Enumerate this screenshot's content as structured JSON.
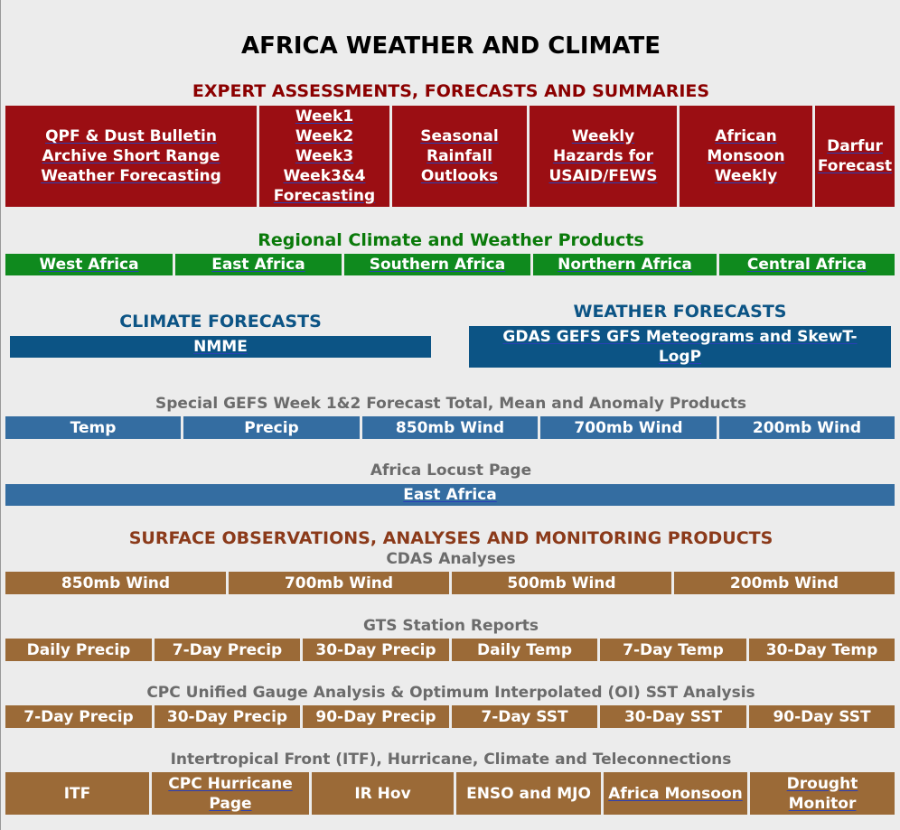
{
  "page_title": "AFRICA WEATHER AND CLIMATE",
  "colors": {
    "expert_header": "#8b0000",
    "expert_bg": "#9b0e13",
    "regional_header": "#0a7a0a",
    "regional_bg": "#0f8a1e",
    "forecast_header": "#0c5485",
    "forecast_bg": "#0c5485",
    "gefs_bg": "#346da1",
    "surface_header": "#8b3a1a",
    "surface_bg": "#9b6a37"
  },
  "expert": {
    "header": "EXPERT ASSESSMENTS, FORECASTS AND SUMMARIES",
    "items": [
      "QPF & Dust    Bulletin Archive   Short Range Weather Forecasting",
      "Week1 Week2 Week3 Week3&4 Forecasting",
      "Seasonal Rainfall Outlooks",
      "Weekly Hazards    for USAID/FEWS",
      "African Monsoon Weekly",
      "Darfur Forecast"
    ]
  },
  "regional": {
    "header": "Regional Climate and Weather Products",
    "items": [
      "West Africa",
      "East Africa",
      "Southern Africa",
      "Northern Africa",
      "Central Africa"
    ]
  },
  "climate_forecasts": {
    "header": "CLIMATE FORECASTS",
    "item": "NMME"
  },
  "weather_forecasts": {
    "header": "WEATHER FORECASTS",
    "item": "GDAS GEFS GFS Meteograms and SkewT-LogP"
  },
  "gefs": {
    "header": "Special GEFS Week 1&2 Forecast Total, Mean and Anomaly Products",
    "items": [
      "Temp",
      "Precip",
      "850mb Wind",
      "700mb Wind",
      "200mb Wind"
    ]
  },
  "locust": {
    "header": "Africa Locust Page",
    "item": "East Africa"
  },
  "surface": {
    "header": "SURFACE OBSERVATIONS, ANALYSES AND MONITORING PRODUCTS",
    "cdas_header": "CDAS Analyses",
    "cdas_items": [
      "850mb Wind",
      "700mb Wind",
      "500mb Wind",
      "200mb Wind"
    ],
    "gts_header": "GTS Station Reports",
    "gts_items": [
      "Daily Precip",
      "7-Day Precip",
      "30-Day Precip",
      "Daily Temp",
      "7-Day Temp",
      "30-Day Temp"
    ],
    "cpc_header": "CPC Unified Gauge Analysis & Optimum Interpolated (OI) SST Analysis",
    "cpc_items": [
      "7-Day Precip",
      "30-Day Precip",
      "90-Day Precip",
      "7-Day SST",
      "30-Day SST",
      "90-Day SST"
    ],
    "itf_header": "Intertropical Front (ITF), Hurricane, Climate and Teleconnections",
    "itf_items": [
      "ITF",
      "CPC Hurricane Page",
      "IR Hov",
      "ENSO and MJO",
      "Africa Monsoon",
      "Drought Monitor"
    ]
  }
}
